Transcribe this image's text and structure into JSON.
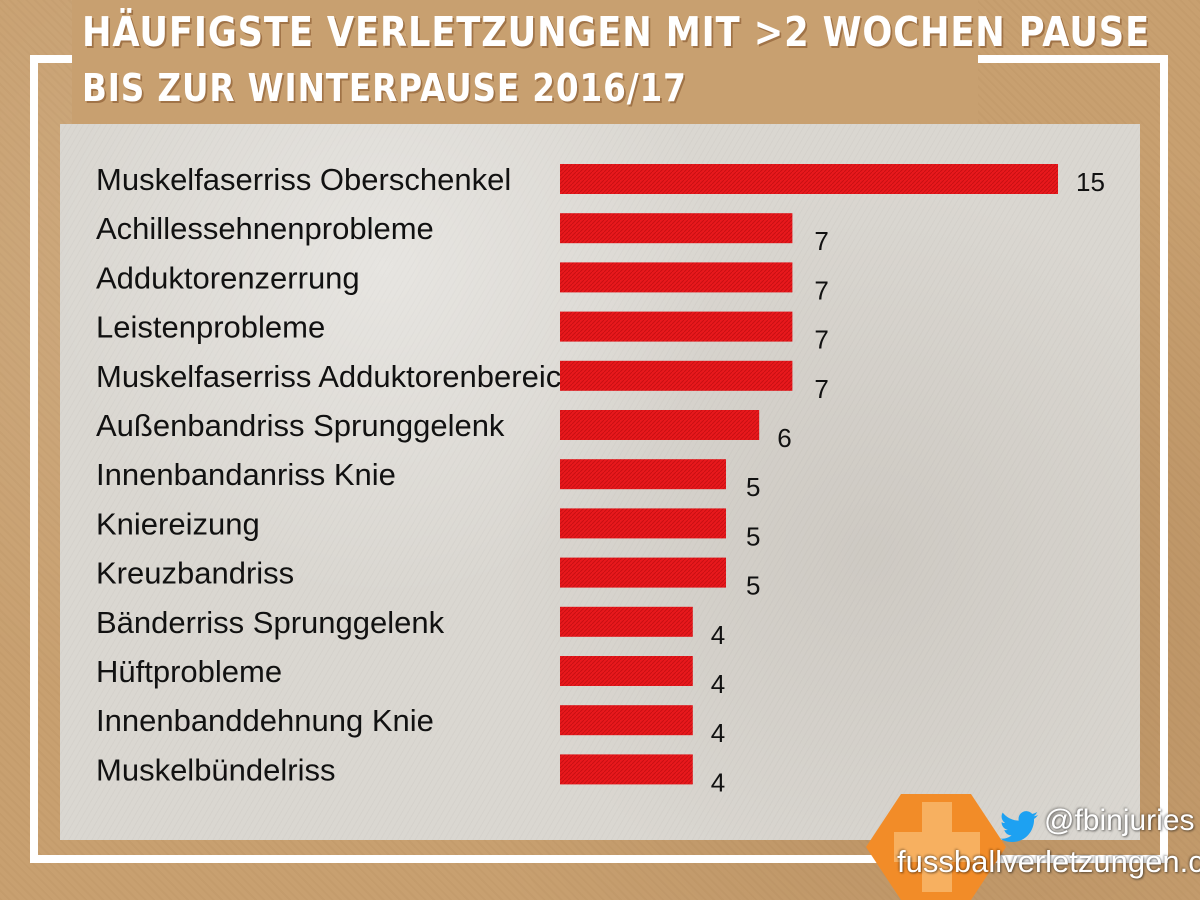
{
  "title_line1": "HÄUFIGSTE VERLETZUNGEN MIT >2 WOCHEN PAUSE",
  "title_line2": "BIS ZUR WINTERPAUSE 2016/17",
  "footer": {
    "twitter_handle": "@fbinjuries",
    "website": "fussballverletzungen.com",
    "icons": [
      "twitter-bird-icon",
      "medical-cross-badge-icon"
    ]
  },
  "colors": {
    "bar": "#e8181c",
    "background": "#c8a070",
    "panel": "#dad7d1",
    "accent": "#f28c28"
  },
  "chart_data": {
    "type": "bar",
    "orientation": "horizontal",
    "title": "HÄUFIGSTE VERLETZUNGEN MIT >2 WOCHEN PAUSE BIS ZUR WINTERPAUSE 2016/17",
    "categories": [
      "Muskelfaserriss Oberschenkel",
      "Achillessehnenprobleme",
      "Adduktorenzerrung",
      "Leistenprobleme",
      "Muskelfaserriss Adduktorenbereich",
      "Außenbandriss Sprunggelenk",
      "Innenbandanriss Knie",
      "Kniereizung",
      "Kreuzbandriss",
      "Bänderriss Sprunggelenk",
      "Hüftprobleme",
      "Innenbanddehnung Knie",
      "Muskelbündelriss"
    ],
    "values": [
      15,
      7,
      7,
      7,
      7,
      6,
      5,
      5,
      5,
      4,
      4,
      4,
      4
    ],
    "data_labels": true,
    "grid": false,
    "legend": "none"
  }
}
